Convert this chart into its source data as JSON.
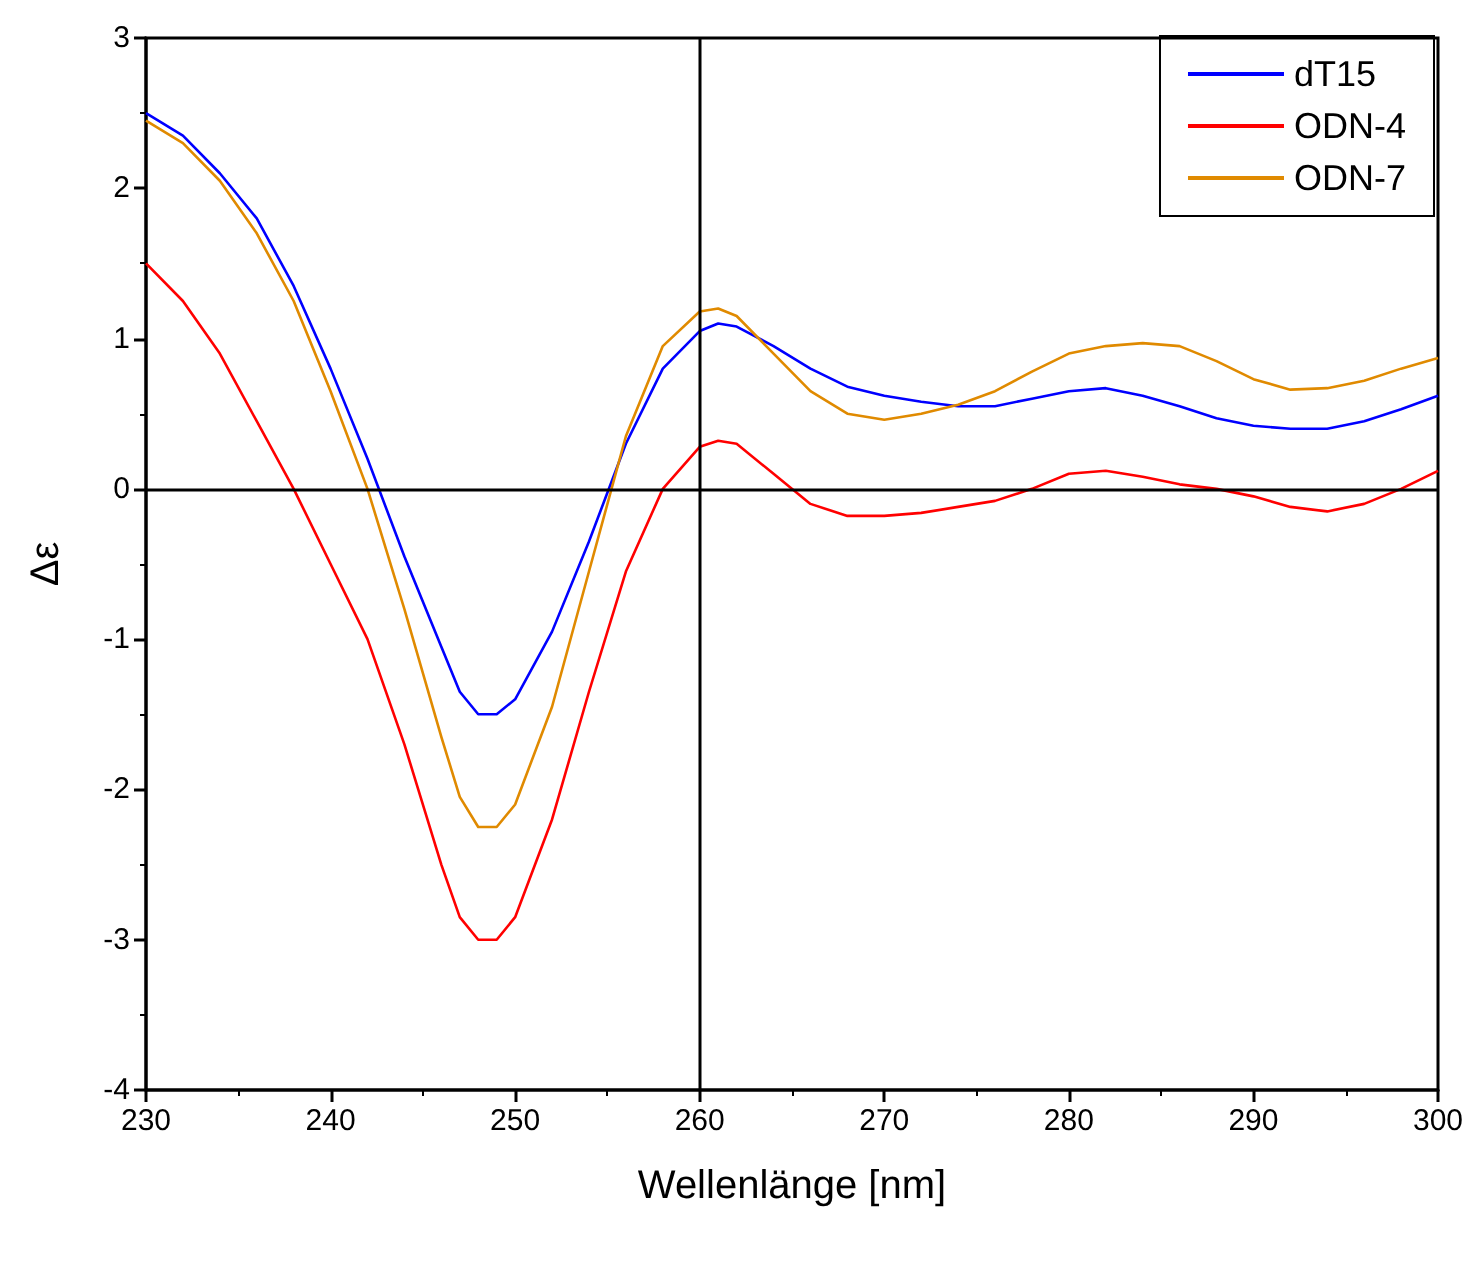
{
  "chart_data": {
    "type": "line",
    "xlabel": "Wellenlänge [nm]",
    "ylabel": "Δε",
    "x": [
      230,
      232,
      234,
      236,
      238,
      240,
      242,
      244,
      246,
      247,
      248,
      249,
      250,
      252,
      254,
      256,
      258,
      260,
      261,
      262,
      264,
      266,
      268,
      270,
      272,
      274,
      276,
      278,
      280,
      282,
      284,
      286,
      288,
      290,
      292,
      294,
      296,
      298,
      300
    ],
    "series": [
      {
        "name": "dT15",
        "color": "#0000ff",
        "values": [
          2.5,
          2.35,
          2.1,
          1.8,
          1.35,
          0.8,
          0.2,
          -0.45,
          -1.05,
          -1.35,
          -1.5,
          -1.5,
          -1.4,
          -0.95,
          -0.35,
          0.3,
          0.8,
          1.05,
          1.1,
          1.08,
          0.95,
          0.8,
          0.68,
          0.62,
          0.58,
          0.55,
          0.55,
          0.6,
          0.65,
          0.67,
          0.62,
          0.55,
          0.47,
          0.42,
          0.4,
          0.4,
          0.45,
          0.53,
          0.62
        ]
      },
      {
        "name": "ODN-4",
        "color": "#ff0000",
        "values": [
          1.5,
          1.25,
          0.9,
          0.45,
          0.0,
          -0.5,
          -1.0,
          -1.7,
          -2.5,
          -2.85,
          -3.0,
          -3.0,
          -2.85,
          -2.2,
          -1.35,
          -0.55,
          0.0,
          0.28,
          0.32,
          0.3,
          0.1,
          -0.1,
          -0.18,
          -0.18,
          -0.16,
          -0.12,
          -0.08,
          0.0,
          0.1,
          0.12,
          0.08,
          0.03,
          0.0,
          -0.05,
          -0.12,
          -0.15,
          -0.1,
          0.0,
          0.12
        ]
      },
      {
        "name": "ODN-7",
        "color": "#e08a00",
        "values": [
          2.45,
          2.3,
          2.05,
          1.7,
          1.25,
          0.65,
          0.0,
          -0.8,
          -1.65,
          -2.05,
          -2.25,
          -2.25,
          -2.1,
          -1.45,
          -0.55,
          0.35,
          0.95,
          1.18,
          1.2,
          1.15,
          0.9,
          0.65,
          0.5,
          0.46,
          0.5,
          0.56,
          0.65,
          0.78,
          0.9,
          0.95,
          0.97,
          0.95,
          0.85,
          0.73,
          0.66,
          0.67,
          0.72,
          0.8,
          0.87
        ]
      }
    ],
    "xlim": [
      230,
      300
    ],
    "xticks": [
      230,
      240,
      250,
      260,
      270,
      280,
      290,
      300
    ],
    "ylim": [
      -4,
      3
    ],
    "yticks": [
      -4,
      -3,
      -2,
      -1,
      0,
      1,
      2,
      3
    ],
    "ref_lines": [
      {
        "axis": "x",
        "value": 260,
        "color": "#000000"
      },
      {
        "axis": "y",
        "value": 0,
        "color": "#000000"
      }
    ],
    "grid": false,
    "legend": "top right",
    "marker": "none",
    "line_style": "solid"
  }
}
